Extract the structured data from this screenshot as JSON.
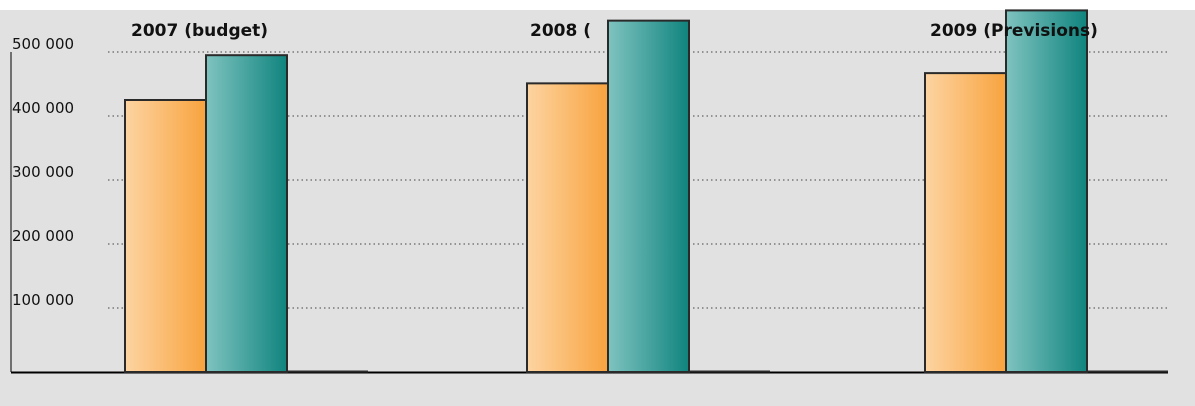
{
  "chart_data": {
    "type": "bar",
    "title": "",
    "xlabel": "",
    "ylabel": "",
    "categories": [
      "2007 (budget)",
      "2008 (",
      "2009 (Previsions)"
    ],
    "series": [
      {
        "values": [
          425000,
          451000,
          467000
        ]
      },
      {
        "values": [
          495000,
          549000,
          565000
        ]
      },
      {
        "values": [
          0,
          0,
          0
        ]
      }
    ],
    "y_ticks": [
      {
        "value": 100000,
        "label": "100 000"
      },
      {
        "value": 200000,
        "label": "200 000"
      },
      {
        "value": 300000,
        "label": "300 000"
      },
      {
        "value": 400000,
        "label": "400 000"
      },
      {
        "value": 500000,
        "label": "500 000"
      }
    ],
    "ylim": [
      0,
      565000
    ],
    "grid": true,
    "legend": "none"
  },
  "colors": {
    "background": "#e1e1e1",
    "series_1_light": "#fdd4a2",
    "series_1_dark": "#f8a33e",
    "series_2_light": "#7fc3c0",
    "series_2_dark": "#10847e",
    "bar_outline": "#2a2a2a",
    "grid": "#444444",
    "axis": "#000000"
  }
}
